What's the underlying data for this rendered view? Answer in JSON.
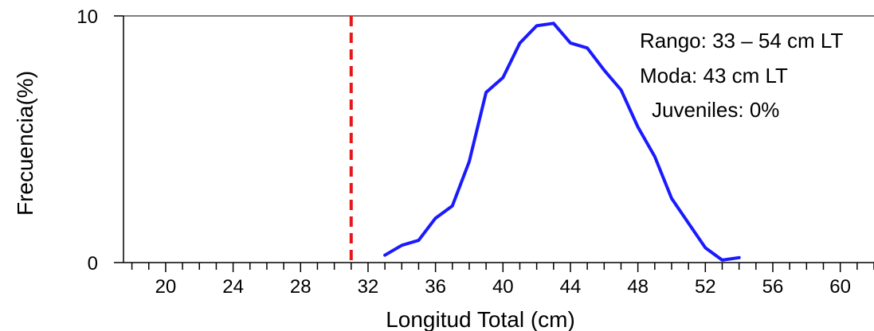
{
  "chart_data": {
    "type": "line",
    "title": "",
    "xlabel": "Longitud Total (cm)",
    "ylabel": "Frecuencia(%)",
    "xlim": [
      17.5,
      62
    ],
    "ylim": [
      0,
      10
    ],
    "x_ticks": [
      20,
      24,
      28,
      32,
      36,
      40,
      44,
      48,
      52,
      56,
      60
    ],
    "x_minor_step": 1,
    "y_ticks": [
      0,
      10
    ],
    "grid": false,
    "series": [
      {
        "color": "#1a1aff",
        "x": [
          33,
          34,
          35,
          36,
          37,
          38,
          39,
          40,
          41,
          42,
          43,
          44,
          45,
          46,
          47,
          48,
          49,
          50,
          51,
          52,
          53,
          54
        ],
        "y": [
          0.3,
          0.7,
          0.9,
          1.8,
          2.3,
          4.1,
          6.9,
          7.5,
          8.9,
          9.6,
          9.7,
          8.9,
          8.7,
          7.8,
          7.0,
          5.5,
          4.3,
          2.6,
          1.6,
          0.6,
          0.1,
          0.2
        ]
      }
    ],
    "reference_line": {
      "x": 31,
      "color": "#e8161b",
      "style": "dashed"
    },
    "annotations": [
      "Rango: 33 – 54 cm LT",
      "Moda: 43 cm LT",
      "Juveniles: 0%"
    ]
  }
}
